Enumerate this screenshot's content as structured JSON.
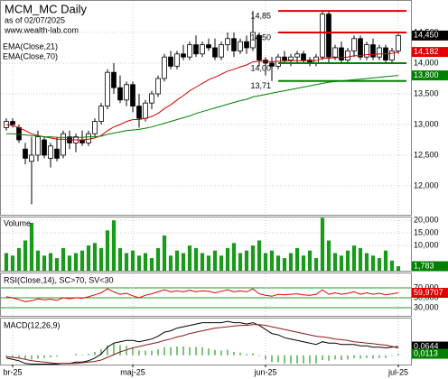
{
  "chart_data": [
    {
      "type": "candlestick",
      "title": "MCM_MC Daily",
      "subtitle": "as of 02/07/2025",
      "source": "www.wealth-lab.com",
      "xlim": [
        -1,
        64
      ],
      "ylim": [
        11529,
        15029
      ],
      "yticks": [
        {
          "value": 12000,
          "label": "12,000"
        },
        {
          "value": 12500,
          "label": "12,500"
        },
        {
          "value": 13000,
          "label": "13,000"
        },
        {
          "value": 13500,
          "label": "13,500"
        },
        {
          "value": 14000,
          "label": "14,000"
        },
        {
          "value": 14500,
          "label": "14,500"
        }
      ],
      "grid": true,
      "ohlc": [
        [
          12950,
          13100,
          12900,
          13050
        ],
        [
          13050,
          13100,
          12950,
          13000
        ],
        [
          12950,
          13000,
          12700,
          12750
        ],
        [
          12600,
          12700,
          12350,
          12450
        ],
        [
          12400,
          12800,
          11700,
          12500
        ],
        [
          12500,
          12900,
          12400,
          12800
        ],
        [
          12750,
          12800,
          12450,
          12500
        ],
        [
          12450,
          12700,
          12300,
          12650
        ],
        [
          12600,
          12800,
          12400,
          12450
        ],
        [
          12500,
          12900,
          12450,
          12850
        ],
        [
          12800,
          12900,
          12600,
          12700
        ],
        [
          12700,
          12850,
          12550,
          12800
        ],
        [
          12750,
          12900,
          12650,
          12700
        ],
        [
          12700,
          12900,
          12650,
          12850
        ],
        [
          12850,
          13100,
          12800,
          13050
        ],
        [
          13050,
          13350,
          13000,
          13300
        ],
        [
          13300,
          13900,
          13250,
          13850
        ],
        [
          13850,
          14000,
          13500,
          13600
        ],
        [
          13600,
          13800,
          13350,
          13400
        ],
        [
          13400,
          13700,
          13300,
          13650
        ],
        [
          13650,
          13700,
          13200,
          13300
        ],
        [
          13300,
          13500,
          12950,
          13100
        ],
        [
          13100,
          13400,
          13050,
          13350
        ],
        [
          13350,
          13550,
          13250,
          13500
        ],
        [
          13500,
          13800,
          13450,
          13750
        ],
        [
          13750,
          14150,
          13700,
          14100
        ],
        [
          14100,
          14200,
          13900,
          13950
        ],
        [
          13950,
          14200,
          13900,
          14150
        ],
        [
          14150,
          14300,
          14050,
          14100
        ],
        [
          14100,
          14350,
          14050,
          14300
        ],
        [
          14300,
          14450,
          14100,
          14150
        ],
        [
          14150,
          14350,
          14100,
          14300
        ],
        [
          14300,
          14400,
          14200,
          14250
        ],
        [
          14250,
          14400,
          14050,
          14100
        ],
        [
          14100,
          14350,
          14050,
          14300
        ],
        [
          14300,
          14500,
          14200,
          14400
        ],
        [
          14400,
          14500,
          14100,
          14200
        ],
        [
          14200,
          14400,
          14150,
          14350
        ],
        [
          14350,
          14450,
          14150,
          14250
        ],
        [
          14250,
          14850,
          14200,
          14500
        ],
        [
          14450,
          14500,
          13950,
          14050
        ],
        [
          14050,
          14100,
          13800,
          14000
        ],
        [
          14000,
          14100,
          13710,
          13950
        ],
        [
          13950,
          14150,
          13900,
          14100
        ],
        [
          14100,
          14200,
          14000,
          14050
        ],
        [
          14050,
          14150,
          13950,
          14100
        ],
        [
          14100,
          14200,
          14000,
          14150
        ],
        [
          14150,
          14200,
          14000,
          14050
        ],
        [
          14050,
          14100,
          13950,
          14000
        ],
        [
          14000,
          14150,
          13950,
          14100
        ],
        [
          14100,
          14850,
          14050,
          14800
        ],
        [
          14800,
          14850,
          14000,
          14100
        ],
        [
          14100,
          14300,
          14050,
          14250
        ],
        [
          14250,
          14350,
          14000,
          14050
        ],
        [
          14050,
          14250,
          14000,
          14200
        ],
        [
          14200,
          14450,
          14100,
          14400
        ],
        [
          14400,
          14450,
          14050,
          14100
        ],
        [
          14100,
          14350,
          14050,
          14300
        ],
        [
          14300,
          14400,
          14050,
          14100
        ],
        [
          14100,
          14300,
          14050,
          14250
        ],
        [
          14250,
          14300,
          14000,
          14050
        ],
        [
          14050,
          14250,
          14000,
          14200
        ],
        [
          14200,
          14480,
          14150,
          14450
        ]
      ],
      "series": [
        {
          "name": "EMA(Close,21)",
          "color": "#d00000",
          "values": [
            13000,
            12980,
            12950,
            12900,
            12850,
            12820,
            12800,
            12780,
            12760,
            12760,
            12750,
            12750,
            12750,
            12760,
            12780,
            12820,
            12900,
            12960,
            13000,
            13050,
            13080,
            13080,
            13100,
            13130,
            13180,
            13260,
            13320,
            13400,
            13470,
            13550,
            13610,
            13670,
            13730,
            13770,
            13820,
            13870,
            13900,
            13940,
            13970,
            14020,
            14030,
            14030,
            14020,
            14030,
            14030,
            14040,
            14040,
            14040,
            14040,
            14040,
            14080,
            14080,
            14090,
            14090,
            14100,
            14120,
            14120,
            14140,
            14140,
            14150,
            14150,
            14160,
            14182
          ]
        },
        {
          "name": "EMA(Close,70)",
          "color": "#008000",
          "values": [
            12850,
            12850,
            12840,
            12830,
            12820,
            12810,
            12800,
            12800,
            12790,
            12790,
            12790,
            12790,
            12790,
            12800,
            12800,
            12810,
            12840,
            12860,
            12880,
            12900,
            12910,
            12920,
            12940,
            12960,
            12990,
            13020,
            13050,
            13080,
            13110,
            13140,
            13180,
            13210,
            13240,
            13270,
            13300,
            13330,
            13360,
            13390,
            13410,
            13450,
            13470,
            13490,
            13510,
            13530,
            13550,
            13570,
            13590,
            13610,
            13630,
            13650,
            13670,
            13690,
            13700,
            13710,
            13720,
            13730,
            13740,
            13750,
            13760,
            13770,
            13780,
            13790,
            13800
          ]
        }
      ],
      "levels": [
        {
          "value": 14850,
          "label": "14,85",
          "color": "#e00000"
        },
        {
          "value": 14500,
          "label": "14,50",
          "color": "#e00000"
        },
        {
          "value": 14000,
          "label": "14,00",
          "color": "#008000"
        },
        {
          "value": 13710,
          "label": "13,71",
          "color": "#008000"
        }
      ],
      "last_labels": [
        {
          "value": 14450,
          "label": "14,450",
          "color": "#000000"
        },
        {
          "value": 14182,
          "label": "14,182",
          "color": "#e00000"
        },
        {
          "value": 13800,
          "label": "13,800",
          "color": "#008000"
        }
      ]
    },
    {
      "type": "bar",
      "title": "Volume",
      "xlim": [
        -1,
        64
      ],
      "ylim": [
        0,
        21500
      ],
      "color": "#1a9a1a",
      "yticks": [
        {
          "value": 10000,
          "label": "10,000"
        },
        {
          "value": 15000,
          "label": "15,000"
        },
        {
          "value": 20000,
          "label": "20,000"
        }
      ],
      "grid": true,
      "values": [
        7000,
        6000,
        9000,
        12000,
        19000,
        8000,
        6000,
        7000,
        5000,
        9000,
        6000,
        7000,
        8000,
        10000,
        11000,
        9000,
        16000,
        20000,
        9000,
        7000,
        8000,
        6000,
        7000,
        5000,
        9000,
        14000,
        6000,
        8000,
        7000,
        10000,
        9000,
        7000,
        6000,
        8000,
        6000,
        9000,
        11000,
        7000,
        8000,
        10000,
        12000,
        7000,
        8000,
        6000,
        5000,
        7000,
        9000,
        6000,
        8000,
        5000,
        21000,
        12000,
        7000,
        6000,
        8000,
        10000,
        9000,
        7000,
        6000,
        5000,
        8000,
        4000,
        1783
      ],
      "last_labels": [
        {
          "value": 1783,
          "label": "1,783",
          "color": "#008000"
        }
      ]
    },
    {
      "type": "line",
      "title": "RSI(Close,14), SC>70, SV<30",
      "xlim": [
        -1,
        64
      ],
      "ylim": [
        13.6,
        100.9
      ],
      "yticks": [
        {
          "value": 30,
          "label": "30,000"
        },
        {
          "value": 50,
          "label": "50,000"
        },
        {
          "value": 70,
          "label": "70,000"
        }
      ],
      "grid": true,
      "grid_color": "#2a9a2a",
      "series": [
        {
          "color": "#e00000",
          "values": [
            52,
            50,
            46,
            42,
            44,
            48,
            46,
            47,
            45,
            50,
            48,
            50,
            49,
            52,
            56,
            60,
            68,
            62,
            57,
            59,
            54,
            50,
            55,
            58,
            62,
            66,
            62,
            64,
            62,
            65,
            62,
            64,
            63,
            60,
            63,
            66,
            62,
            64,
            62,
            68,
            58,
            55,
            53,
            57,
            56,
            57,
            58,
            56,
            55,
            57,
            66,
            57,
            60,
            57,
            59,
            62,
            57,
            60,
            57,
            59,
            56,
            58,
            59.9707
          ]
        }
      ],
      "last_labels": [
        {
          "value": 59.9707,
          "label": "59,9707",
          "color": "#e00000"
        }
      ]
    },
    {
      "type": "line",
      "title": "MACD(12,26,9)",
      "xlim": [
        -1,
        64
      ],
      "ylim": [
        -0.068,
        0.277
      ],
      "xticks": [
        {
          "value": 1,
          "label": "br-25"
        },
        {
          "value": 20,
          "label": "maj-25"
        },
        {
          "value": 41,
          "label": "jun-25"
        },
        {
          "value": 62,
          "label": "jul-25"
        }
      ],
      "series": [
        {
          "color": "#000000",
          "values": [
            -0.02,
            -0.03,
            -0.04,
            -0.06,
            -0.065,
            -0.065,
            -0.065,
            -0.065,
            -0.065,
            -0.06,
            -0.06,
            -0.05,
            -0.05,
            -0.04,
            -0.02,
            0.01,
            0.06,
            0.09,
            0.1,
            0.11,
            0.11,
            0.1,
            0.11,
            0.12,
            0.14,
            0.17,
            0.18,
            0.2,
            0.21,
            0.22,
            0.23,
            0.24,
            0.24,
            0.24,
            0.24,
            0.25,
            0.24,
            0.24,
            0.23,
            0.24,
            0.22,
            0.19,
            0.16,
            0.15,
            0.13,
            0.12,
            0.11,
            0.1,
            0.09,
            0.08,
            0.1,
            0.09,
            0.09,
            0.08,
            0.08,
            0.08,
            0.07,
            0.07,
            0.06,
            0.06,
            0.055,
            0.06,
            0.0644
          ]
        },
        {
          "color": "#8b1a1a",
          "values": [
            -0.01,
            -0.015,
            -0.02,
            -0.03,
            -0.04,
            -0.045,
            -0.05,
            -0.055,
            -0.06,
            -0.06,
            -0.06,
            -0.06,
            -0.055,
            -0.05,
            -0.045,
            -0.035,
            -0.015,
            0.005,
            0.025,
            0.04,
            0.055,
            0.065,
            0.075,
            0.085,
            0.095,
            0.11,
            0.12,
            0.135,
            0.145,
            0.16,
            0.17,
            0.18,
            0.19,
            0.2,
            0.205,
            0.21,
            0.215,
            0.22,
            0.22,
            0.225,
            0.225,
            0.22,
            0.21,
            0.2,
            0.19,
            0.18,
            0.17,
            0.16,
            0.15,
            0.14,
            0.135,
            0.13,
            0.12,
            0.115,
            0.11,
            0.1,
            0.095,
            0.09,
            0.085,
            0.08,
            0.075,
            0.065,
            0.0531
          ]
        }
      ],
      "histogram": {
        "color": "#2a9a2a",
        "values": [
          -0.01,
          -0.015,
          -0.02,
          -0.03,
          -0.03,
          -0.025,
          -0.02,
          -0.015,
          -0.01,
          0,
          0,
          0.01,
          0.005,
          0.01,
          0.025,
          0.045,
          0.075,
          0.085,
          0.075,
          0.07,
          0.055,
          0.035,
          0.035,
          0.035,
          0.045,
          0.06,
          0.06,
          0.065,
          0.065,
          0.06,
          0.06,
          0.06,
          0.05,
          0.04,
          0.035,
          0.04,
          0.025,
          0.02,
          0.01,
          0.015,
          -0.005,
          -0.03,
          -0.05,
          -0.05,
          -0.06,
          -0.06,
          -0.06,
          -0.06,
          -0.06,
          -0.06,
          -0.035,
          -0.04,
          -0.03,
          -0.035,
          -0.03,
          -0.02,
          -0.025,
          -0.02,
          -0.025,
          -0.02,
          -0.02,
          -0.005,
          0.0113
        ]
      },
      "last_labels": [
        {
          "value": 0.0644,
          "label": "0,0644",
          "color": "#000000"
        },
        {
          "value": 0.0113,
          "label": "0,0113",
          "color": "#008000"
        }
      ]
    }
  ]
}
